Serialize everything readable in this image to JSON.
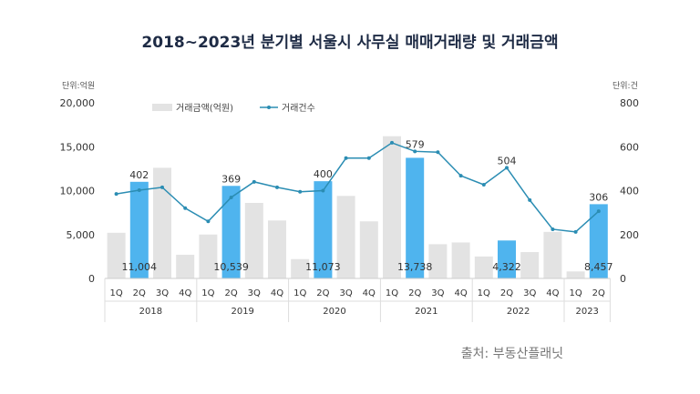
{
  "title": "2018~2023년 분기별 서울시 사무실 매매거래량 및 거래금액",
  "source": "출처: 부동산플래닛",
  "chart_data": {
    "type": "bar+line",
    "title": "2018~2023년 분기별 서울시 사무실 매매거래량 및 거래금액",
    "left_unit": "단위:억원",
    "right_unit": "단위:건",
    "ylim_left": [
      0,
      20000
    ],
    "ylim_right": [
      0,
      800
    ],
    "left_ticks": [
      "0",
      "5,000",
      "10,000",
      "15,000",
      "20,000"
    ],
    "right_ticks": [
      "0",
      "200",
      "400",
      "600",
      "800"
    ],
    "legend": [
      "거래금액(억원)",
      "거래건수"
    ],
    "legend_position": "top-center",
    "quarters": [
      "1Q",
      "2Q",
      "3Q",
      "4Q",
      "1Q",
      "2Q",
      "3Q",
      "4Q",
      "1Q",
      "2Q",
      "3Q",
      "4Q",
      "1Q",
      "2Q",
      "3Q",
      "4Q",
      "1Q",
      "2Q",
      "3Q",
      "4Q",
      "1Q",
      "2Q"
    ],
    "years": [
      {
        "label": "2018",
        "count": 4
      },
      {
        "label": "2019",
        "count": 4
      },
      {
        "label": "2020",
        "count": 4
      },
      {
        "label": "2021",
        "count": 4
      },
      {
        "label": "2022",
        "count": 4
      },
      {
        "label": "2023",
        "count": 2
      }
    ],
    "series": [
      {
        "name": "거래금액(억원)",
        "type": "bar",
        "axis": "left",
        "values": [
          5200,
          11004,
          12600,
          2700,
          5000,
          10539,
          8600,
          6600,
          2200,
          11073,
          9400,
          6500,
          16200,
          13738,
          3900,
          4100,
          2500,
          4322,
          3000,
          5300,
          800,
          8457
        ]
      },
      {
        "name": "거래건수",
        "type": "line",
        "axis": "right",
        "values": [
          385,
          402,
          415,
          320,
          260,
          369,
          440,
          415,
          395,
          400,
          548,
          548,
          618,
          579,
          575,
          468,
          427,
          504,
          357,
          224,
          212,
          306
        ]
      }
    ],
    "highlighted": [
      1,
      5,
      9,
      13,
      17,
      21
    ],
    "bar_labels": {
      "1": "11,004",
      "5": "10,539",
      "9": "11,073",
      "13": "13,738",
      "17": "4,322",
      "21": "8,457"
    },
    "line_labels": {
      "1": "402",
      "5": "369",
      "9": "400",
      "13": "579",
      "17": "504",
      "21": "306"
    },
    "colors": {
      "bar": "#e3e3e3",
      "highlight": "#4fb4ee",
      "line": "#2b8db3",
      "text": "#333333"
    }
  }
}
